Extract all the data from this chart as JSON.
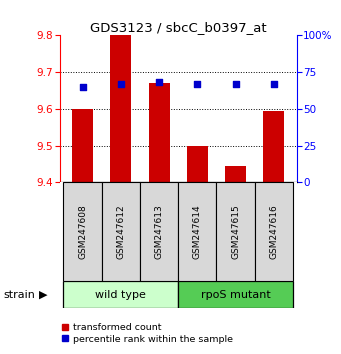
{
  "title": "GDS3123 / sbcC_b0397_at",
  "samples": [
    "GSM247608",
    "GSM247612",
    "GSM247613",
    "GSM247614",
    "GSM247615",
    "GSM247616"
  ],
  "transformed_counts": [
    9.6,
    9.8,
    9.67,
    9.5,
    9.445,
    9.595
  ],
  "percentile_ranks": [
    65,
    67,
    68,
    67,
    67,
    67
  ],
  "bar_bottom": 9.4,
  "ylim_left": [
    9.4,
    9.8
  ],
  "ylim_right": [
    0,
    100
  ],
  "yticks_left": [
    9.4,
    9.5,
    9.6,
    9.7,
    9.8
  ],
  "yticks_right": [
    0,
    25,
    50,
    75,
    100
  ],
  "bar_color": "#cc0000",
  "dot_color": "#0000cc",
  "bar_width": 0.55,
  "title_str": "GDS3123 / sbcC_b0397_at",
  "group_info": [
    {
      "label": "wild type",
      "start": 0,
      "end": 2,
      "color": "#ccffcc"
    },
    {
      "label": "rpoS mutant",
      "start": 3,
      "end": 5,
      "color": "#55cc55"
    }
  ],
  "sample_bg": "#d8d8d8",
  "legend_items": [
    "transformed count",
    "percentile rank within the sample"
  ],
  "strain_label": "strain"
}
